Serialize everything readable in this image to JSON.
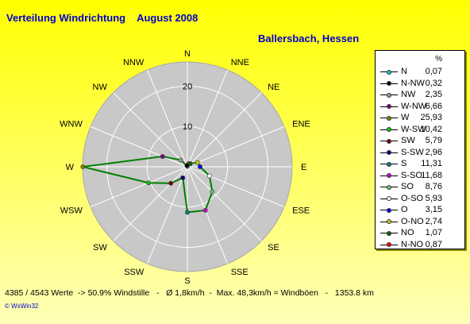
{
  "header": {
    "title": "Verteilung Windrichtung    August 2008",
    "subtitle": "Ballersbach, Hessen"
  },
  "legend": {
    "unit": "%"
  },
  "footer": {
    "stats": "4385 / 4543 Werte  -> 50.9% Windstille   -   Ø 1,8km/h  -  Max. 48,3km/h = Windböen   -   1353.8 km",
    "credit_symbol": "©",
    "credit": "WsWin32"
  },
  "chart_data": {
    "type": "radar",
    "title": "Verteilung Windrichtung    August 2008",
    "subtitle": "Ballersbach, Hessen",
    "radial_ticks": [
      10,
      20
    ],
    "radial_max": 26,
    "grid": true,
    "legend_position": "right",
    "series_color": "#008000",
    "directions": [
      "N",
      "NNE",
      "NE",
      "ENE",
      "E",
      "ESE",
      "SE",
      "SSE",
      "S",
      "SSW",
      "SW",
      "WSW",
      "W",
      "WNW",
      "NW",
      "NNW"
    ],
    "legend_entries": [
      {
        "label": "N",
        "value": "0,07",
        "color": "#00cccc"
      },
      {
        "label": "N-NW",
        "value": "0,32",
        "color": "#000000"
      },
      {
        "label": "NW",
        "value": "2,35",
        "color": "#999999"
      },
      {
        "label": "W-NW",
        "value": "6,66",
        "color": "#800080"
      },
      {
        "label": "W",
        "value": "25,93",
        "color": "#808000"
      },
      {
        "label": "W-SW",
        "value": "10,42",
        "color": "#00cc00"
      },
      {
        "label": "SW",
        "value": "5,79",
        "color": "#800000"
      },
      {
        "label": "S-SW",
        "value": "2,96",
        "color": "#000080"
      },
      {
        "label": "S",
        "value": "11,31",
        "color": "#008080"
      },
      {
        "label": "S-SO",
        "value": "11,68",
        "color": "#cc00cc"
      },
      {
        "label": "SO",
        "value": "8,76",
        "color": "#66cc66"
      },
      {
        "label": "O-SO",
        "value": "5,93",
        "color": "#ffffff"
      },
      {
        "label": "O",
        "value": "3,15",
        "color": "#0000ff"
      },
      {
        "label": "O-NO",
        "value": "2,74",
        "color": "#cccc00"
      },
      {
        "label": "NO",
        "value": "1,07",
        "color": "#006600"
      },
      {
        "label": "N-NO",
        "value": "0,87",
        "color": "#ff0000"
      }
    ],
    "values_by_direction": {
      "N": 0.07,
      "NNE": 0.87,
      "NE": 1.07,
      "ENE": 2.74,
      "E": 3.15,
      "ESE": 5.93,
      "SE": 8.76,
      "SSE": 11.68,
      "S": 11.31,
      "SSW": 2.96,
      "SW": 5.79,
      "WSW": 10.42,
      "W": 25.93,
      "WNW": 6.66,
      "NW": 2.35,
      "NNW": 0.32
    }
  }
}
